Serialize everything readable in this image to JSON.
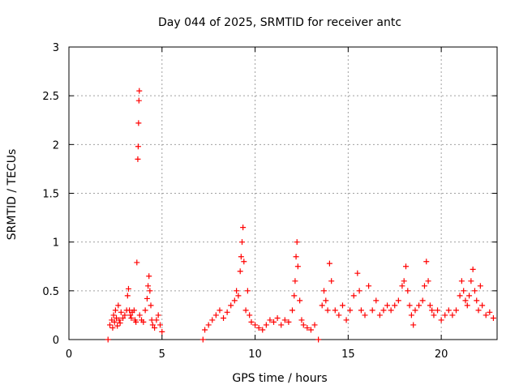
{
  "chart_data": {
    "type": "scatter",
    "title": "Day 044 of 2025, SRMTID for receiver antc",
    "xlabel": "GPS time / hours",
    "ylabel": "SRMTID / TECUs",
    "xlim": [
      0,
      23
    ],
    "ylim": [
      0,
      3
    ],
    "xticks": [
      0,
      5,
      10,
      15,
      20
    ],
    "xtick_labels": [
      "0",
      "5",
      "10",
      "15",
      "20"
    ],
    "yticks": [
      0,
      0.5,
      1,
      1.5,
      2,
      2.5,
      3
    ],
    "ytick_labels": [
      "0",
      "0.5",
      "1",
      "1.5",
      "2",
      "2.5",
      "3"
    ],
    "grid": true,
    "marker": "+",
    "color": "#ff0000",
    "series": [
      {
        "name": "SRMTID",
        "x": [
          2.1,
          2.2,
          2.3,
          2.35,
          2.4,
          2.45,
          2.5,
          2.55,
          2.6,
          2.65,
          2.7,
          2.75,
          2.8,
          2.9,
          3.0,
          3.1,
          3.15,
          3.2,
          3.25,
          3.3,
          3.35,
          3.4,
          3.5,
          3.55,
          3.6,
          3.65,
          3.7,
          3.72,
          3.74,
          3.76,
          3.78,
          3.8,
          3.9,
          4.0,
          4.1,
          4.2,
          4.25,
          4.3,
          4.35,
          4.4,
          4.45,
          4.5,
          4.6,
          4.7,
          4.8,
          4.9,
          5.0,
          7.2,
          7.3,
          7.5,
          7.7,
          7.9,
          8.1,
          8.3,
          8.5,
          8.7,
          8.9,
          9.0,
          9.1,
          9.2,
          9.25,
          9.3,
          9.35,
          9.4,
          9.5,
          9.6,
          9.7,
          9.8,
          10.0,
          10.2,
          10.4,
          10.6,
          10.8,
          11.0,
          11.2,
          11.4,
          11.6,
          11.8,
          12.0,
          12.1,
          12.15,
          12.2,
          12.25,
          12.3,
          12.4,
          12.5,
          12.6,
          12.8,
          13.0,
          13.2,
          13.4,
          13.6,
          13.7,
          13.8,
          13.9,
          14.0,
          14.1,
          14.3,
          14.5,
          14.7,
          14.9,
          15.1,
          15.3,
          15.5,
          15.6,
          15.7,
          15.9,
          16.1,
          16.3,
          16.5,
          16.7,
          16.9,
          17.1,
          17.3,
          17.5,
          17.7,
          17.9,
          18.0,
          18.1,
          18.2,
          18.3,
          18.4,
          18.5,
          18.6,
          18.8,
          19.0,
          19.1,
          19.2,
          19.3,
          19.4,
          19.5,
          19.6,
          19.8,
          20.0,
          20.2,
          20.4,
          20.6,
          20.8,
          21.0,
          21.1,
          21.2,
          21.3,
          21.4,
          21.5,
          21.6,
          21.7,
          21.8,
          21.9,
          22.0,
          22.1,
          22.2,
          22.4,
          22.6,
          22.8
        ],
        "y": [
          0.0,
          0.15,
          0.2,
          0.12,
          0.25,
          0.18,
          0.3,
          0.22,
          0.14,
          0.35,
          0.2,
          0.17,
          0.28,
          0.22,
          0.25,
          0.3,
          0.45,
          0.52,
          0.3,
          0.25,
          0.22,
          0.28,
          0.3,
          0.2,
          0.18,
          0.79,
          1.85,
          1.98,
          2.22,
          2.45,
          2.55,
          0.25,
          0.2,
          0.18,
          0.3,
          0.42,
          0.55,
          0.65,
          0.5,
          0.35,
          0.2,
          0.15,
          0.12,
          0.2,
          0.25,
          0.15,
          0.08,
          0.0,
          0.1,
          0.15,
          0.2,
          0.25,
          0.3,
          0.22,
          0.28,
          0.35,
          0.4,
          0.5,
          0.45,
          0.7,
          0.85,
          1.0,
          1.15,
          0.8,
          0.3,
          0.5,
          0.25,
          0.18,
          0.15,
          0.12,
          0.1,
          0.15,
          0.2,
          0.18,
          0.22,
          0.15,
          0.2,
          0.18,
          0.3,
          0.45,
          0.6,
          0.85,
          1.0,
          0.75,
          0.4,
          0.2,
          0.15,
          0.12,
          0.1,
          0.15,
          0.0,
          0.35,
          0.5,
          0.4,
          0.3,
          0.78,
          0.6,
          0.3,
          0.25,
          0.35,
          0.2,
          0.3,
          0.45,
          0.68,
          0.5,
          0.3,
          0.25,
          0.55,
          0.3,
          0.4,
          0.25,
          0.3,
          0.35,
          0.3,
          0.35,
          0.4,
          0.55,
          0.6,
          0.75,
          0.5,
          0.35,
          0.25,
          0.15,
          0.3,
          0.35,
          0.4,
          0.55,
          0.8,
          0.6,
          0.35,
          0.3,
          0.25,
          0.3,
          0.2,
          0.25,
          0.3,
          0.25,
          0.3,
          0.45,
          0.6,
          0.5,
          0.4,
          0.35,
          0.45,
          0.6,
          0.72,
          0.5,
          0.4,
          0.3,
          0.55,
          0.35,
          0.25,
          0.28,
          0.22
        ]
      }
    ]
  }
}
